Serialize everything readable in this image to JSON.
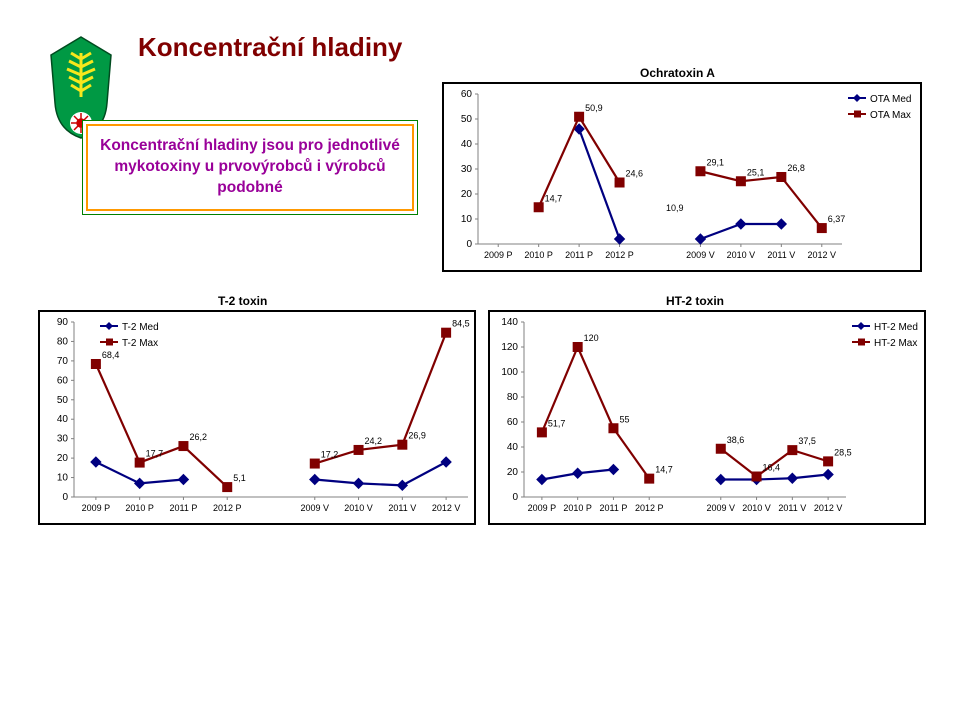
{
  "page_title": "Koncentrační hladiny",
  "description": "Koncentrační hladiny jsou pro jednotlivé mykotoxiny u prvovýrobců i výrobců podobné",
  "colors": {
    "bg": "#ffffff",
    "axis": "#808080",
    "tick_text": "#000000",
    "title_text": "#000000",
    "med_line": "#000080",
    "max_line": "#800000",
    "med_marker_fill": "#000080",
    "max_marker_fill": "#800000",
    "label_text": "#000000"
  },
  "top_chart": {
    "title": "Ochratoxin A",
    "title_fontsize": 12,
    "categories": [
      "2009 P",
      "2010 P",
      "2011 P",
      "2012 P",
      "_GAP_",
      "2009 V",
      "2010 V",
      "2011 V",
      "2012 V"
    ],
    "ylim": [
      0,
      60
    ],
    "ytick_step": 10,
    "tick_fontsize": 10,
    "label_fontsize": 9,
    "legend": [
      "OTA Med",
      "OTA Max"
    ],
    "series": [
      {
        "name": "OTA Med",
        "color": "#000080",
        "marker": "diamond",
        "values": [
          null,
          null,
          46,
          2,
          null,
          2,
          8,
          8,
          null
        ],
        "labels": [
          null,
          null,
          null,
          null,
          null,
          null,
          null,
          null,
          null
        ]
      },
      {
        "name": "OTA Max",
        "color": "#800000",
        "marker": "square",
        "values": [
          null,
          14.7,
          50.9,
          24.6,
          10.9,
          29.1,
          25.1,
          26.8,
          6.37
        ],
        "labels": [
          null,
          "14,7",
          "50,9",
          "24,6",
          "10,9",
          "29,1",
          "25,1",
          "26,8",
          "6,37"
        ]
      }
    ]
  },
  "left_chart": {
    "title": "T-2 toxin",
    "title_fontsize": 12,
    "categories": [
      "2009 P",
      "2010 P",
      "2011 P",
      "2012 P",
      "_GAP_",
      "2009 V",
      "2010 V",
      "2011 V",
      "2012 V"
    ],
    "ylim": [
      0,
      90
    ],
    "ytick_step": 10,
    "tick_fontsize": 10,
    "label_fontsize": 9,
    "legend": [
      "T-2 Med",
      "T-2 Max"
    ],
    "series": [
      {
        "name": "T-2 Med",
        "color": "#000080",
        "marker": "diamond",
        "values": [
          18,
          7,
          9,
          null,
          null,
          9,
          7,
          6,
          18
        ],
        "labels": [
          null,
          null,
          null,
          null,
          null,
          null,
          null,
          null,
          null
        ]
      },
      {
        "name": "T-2 Max",
        "color": "#800000",
        "marker": "square",
        "values": [
          68.4,
          17.7,
          26.2,
          5.1,
          null,
          17.2,
          24.2,
          26.9,
          84.5
        ],
        "labels": [
          "68,4",
          "17,7",
          "26,2",
          "5,1",
          null,
          "17,2",
          "24,2",
          "26,9",
          "84,5"
        ]
      }
    ]
  },
  "right_chart": {
    "title": "HT-2 toxin",
    "title_fontsize": 12,
    "categories": [
      "2009 P",
      "2010 P",
      "2011 P",
      "2012 P",
      "_GAP_",
      "2009 V",
      "2010 V",
      "2011 V",
      "2012 V"
    ],
    "ylim": [
      0,
      140
    ],
    "ytick_step": 20,
    "tick_fontsize": 10,
    "label_fontsize": 9,
    "legend": [
      "HT-2 Med",
      "HT-2 Max"
    ],
    "series": [
      {
        "name": "HT-2 Med",
        "color": "#000080",
        "marker": "diamond",
        "values": [
          14,
          19,
          22,
          null,
          null,
          14,
          14,
          15,
          18
        ],
        "labels": [
          null,
          null,
          null,
          null,
          null,
          null,
          null,
          null,
          null
        ]
      },
      {
        "name": "HT-2 Max",
        "color": "#800000",
        "marker": "square",
        "values": [
          51.7,
          120,
          55,
          14.7,
          null,
          38.6,
          16.4,
          37.5,
          28.5
        ],
        "labels": [
          "51,7",
          "120",
          "55",
          "14,7",
          null,
          "38,6",
          "16,4",
          "37,5",
          "28,5"
        ]
      }
    ]
  }
}
